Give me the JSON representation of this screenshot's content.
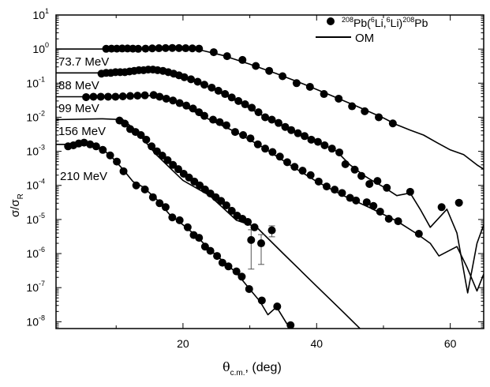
{
  "chart_data": {
    "type": "scatter",
    "xlabel": "θ",
    "xlabel_sub": "c.m.",
    "xlabel_unit": ", (deg)",
    "ylabel": "σ/σ",
    "ylabel_sub": "R",
    "xlim": [
      1,
      65
    ],
    "ylim": [
      6.3e-09,
      10
    ],
    "yscale": "log",
    "x_ticks": [
      20,
      40,
      60
    ],
    "x_tick_labels": [
      "20",
      "40",
      "60"
    ],
    "y_tick_exponents": [
      "1",
      "0",
      "-1",
      "-2",
      "-3",
      "-4",
      "-5",
      "-6",
      "-7",
      "-8"
    ],
    "grid": false,
    "legend": {
      "placement": "top-right",
      "data_label_parts": [
        "208",
        "Pb(",
        "6",
        "Li,",
        "6",
        "Li)",
        "208",
        "Pb"
      ],
      "line_label": "OM"
    },
    "series": [
      {
        "energy_label": "73.7 MeV",
        "points": [
          [
            8.5,
            1.02
          ],
          [
            9.3,
            1.03
          ],
          [
            10.1,
            1.03
          ],
          [
            10.9,
            1.04
          ],
          [
            11.7,
            1.04
          ],
          [
            12.5,
            1.03
          ],
          [
            13.3,
            1.02
          ],
          [
            14.4,
            1.03
          ],
          [
            15.4,
            1.05
          ],
          [
            16.4,
            1.06
          ],
          [
            17.4,
            1.07
          ],
          [
            18.4,
            1.08
          ],
          [
            19.4,
            1.07
          ],
          [
            20.4,
            1.06
          ],
          [
            21.4,
            1.05
          ],
          [
            22.4,
            1.03
          ],
          [
            24.6,
            0.81
          ],
          [
            26.6,
            0.62
          ],
          [
            28.9,
            0.48
          ],
          [
            30.9,
            0.32
          ],
          [
            32.9,
            0.23
          ],
          [
            34.9,
            0.16
          ],
          [
            37,
            0.1
          ],
          [
            39,
            0.078
          ],
          [
            41.1,
            0.048
          ],
          [
            43.3,
            0.035
          ],
          [
            45.3,
            0.021
          ],
          [
            47.2,
            0.015
          ],
          [
            49.3,
            0.01
          ],
          [
            51.4,
            0.0066
          ]
        ],
        "om": [
          [
            1,
            1.0
          ],
          [
            8,
            1.0
          ],
          [
            14,
            1.02
          ],
          [
            20,
            1.05
          ],
          [
            23,
            0.9
          ],
          [
            26,
            0.65
          ],
          [
            30,
            0.36
          ],
          [
            34,
            0.19
          ],
          [
            38,
            0.095
          ],
          [
            42,
            0.045
          ],
          [
            46,
            0.021
          ],
          [
            50,
            0.0095
          ],
          [
            52,
            0.006
          ],
          [
            54,
            0.0042
          ],
          [
            56,
            0.003
          ],
          [
            58,
            0.0018
          ],
          [
            60,
            0.0011
          ],
          [
            62,
            0.0008
          ],
          [
            64,
            0.0004
          ],
          [
            65,
            0.0003
          ]
        ]
      },
      {
        "energy_label": "88 MeV",
        "points": [
          [
            7.8,
            0.19
          ],
          [
            8.5,
            0.2
          ],
          [
            9.2,
            0.2
          ],
          [
            9.9,
            0.21
          ],
          [
            10.6,
            0.21
          ],
          [
            11.3,
            0.21
          ],
          [
            12,
            0.22
          ],
          [
            12.7,
            0.23
          ],
          [
            13.4,
            0.24
          ],
          [
            14.1,
            0.24
          ],
          [
            14.8,
            0.25
          ],
          [
            15.5,
            0.25
          ],
          [
            16.2,
            0.24
          ],
          [
            17,
            0.23
          ],
          [
            17.8,
            0.21
          ],
          [
            18.6,
            0.19
          ],
          [
            19.4,
            0.17
          ],
          [
            20.2,
            0.15
          ],
          [
            21.2,
            0.13
          ],
          [
            22.2,
            0.11
          ],
          [
            23.2,
            0.09
          ],
          [
            24.3,
            0.074
          ],
          [
            25.3,
            0.06
          ],
          [
            26.3,
            0.048
          ],
          [
            27.3,
            0.038
          ],
          [
            28.3,
            0.03
          ],
          [
            29.3,
            0.024
          ],
          [
            30.3,
            0.019
          ],
          [
            31.3,
            0.014
          ],
          [
            32.3,
            0.01
          ],
          [
            33.3,
            0.0085
          ],
          [
            34.3,
            0.0068
          ],
          [
            35.3,
            0.0052
          ],
          [
            36.2,
            0.0042
          ],
          [
            37.2,
            0.0034
          ],
          [
            38.2,
            0.0028
          ],
          [
            39.2,
            0.0022
          ],
          [
            40.2,
            0.0019
          ],
          [
            41.2,
            0.0015
          ],
          [
            42.3,
            0.0012
          ],
          [
            43.4,
            0.00093
          ],
          [
            44.3,
            0.00042
          ],
          [
            45.7,
            0.00029
          ],
          [
            46.7,
            0.00019
          ],
          [
            47.9,
            0.00011
          ],
          [
            49.1,
            0.000135
          ],
          [
            50.5,
            8.5e-05
          ],
          [
            54,
            6.5e-05
          ],
          [
            58.7,
            2.3e-05
          ],
          [
            61.3,
            3.1e-05
          ]
        ],
        "om": [
          [
            1,
            0.2
          ],
          [
            7,
            0.2
          ],
          [
            10,
            0.21
          ],
          [
            13,
            0.23
          ],
          [
            16,
            0.24
          ],
          [
            20,
            0.15
          ],
          [
            24,
            0.075
          ],
          [
            28,
            0.03
          ],
          [
            32,
            0.011
          ],
          [
            36,
            0.0042
          ],
          [
            40,
            0.002
          ],
          [
            43,
            0.001
          ],
          [
            45,
            0.0004
          ],
          [
            47,
            0.0002
          ],
          [
            48,
            0.00015
          ],
          [
            50,
            9e-05
          ],
          [
            52,
            5e-05
          ],
          [
            54,
            6e-05
          ],
          [
            55.5,
            2e-05
          ],
          [
            57,
            5.9e-06
          ],
          [
            59.5,
            2e-05
          ],
          [
            61,
            4e-06
          ],
          [
            62.6,
            7e-08
          ],
          [
            64,
            2e-06
          ],
          [
            65,
            7e-06
          ]
        ]
      },
      {
        "energy_label": "99 MeV",
        "points": [
          [
            5.5,
            0.039
          ],
          [
            6.6,
            0.04
          ],
          [
            7.7,
            0.04
          ],
          [
            8.8,
            0.04
          ],
          [
            9.9,
            0.04
          ],
          [
            11,
            0.041
          ],
          [
            12.1,
            0.042
          ],
          [
            13.2,
            0.043
          ],
          [
            14.3,
            0.044
          ],
          [
            15.6,
            0.045
          ],
          [
            16.5,
            0.04
          ],
          [
            17.5,
            0.035
          ],
          [
            18.5,
            0.031
          ],
          [
            19.5,
            0.026
          ],
          [
            20.5,
            0.022
          ],
          [
            21.5,
            0.018
          ],
          [
            22.4,
            0.014
          ],
          [
            23.2,
            0.011
          ],
          [
            24.5,
            0.0085
          ],
          [
            25.5,
            0.0072
          ],
          [
            26.5,
            0.0058
          ],
          [
            27.8,
            0.0037
          ],
          [
            29,
            0.003
          ],
          [
            30.1,
            0.0024
          ],
          [
            31.2,
            0.0016
          ],
          [
            32.3,
            0.0012
          ],
          [
            33.4,
            0.00095
          ],
          [
            34.5,
            0.0007
          ],
          [
            35.6,
            0.00048
          ],
          [
            36.7,
            0.00035
          ],
          [
            37.9,
            0.00027
          ],
          [
            39.1,
            0.0002
          ],
          [
            40.3,
            0.00013
          ],
          [
            41.5,
            9.3e-05
          ],
          [
            42.7,
            7.5e-05
          ],
          [
            43.8,
            6e-05
          ],
          [
            45,
            4.3e-05
          ],
          [
            45.9,
            3.6e-05
          ],
          [
            47.5,
            3.2e-05
          ],
          [
            48.5,
            2.5e-05
          ],
          [
            49.5,
            1.7e-05
          ],
          [
            50.8,
            1.05e-05
          ],
          [
            52.2,
            8.9e-06
          ],
          [
            55.3,
            3.8e-06
          ]
        ],
        "om": [
          [
            1,
            0.04
          ],
          [
            6,
            0.04
          ],
          [
            12,
            0.042
          ],
          [
            16,
            0.043
          ],
          [
            20,
            0.022
          ],
          [
            24,
            0.0085
          ],
          [
            28,
            0.0036
          ],
          [
            32,
            0.0013
          ],
          [
            36,
            0.0004
          ],
          [
            40,
            0.00013
          ],
          [
            44,
            5e-05
          ],
          [
            48,
            2.2e-05
          ],
          [
            52,
            9e-06
          ],
          [
            55,
            3.8e-06
          ],
          [
            57,
            2e-06
          ],
          [
            58.3,
            8.5e-07
          ],
          [
            61,
            1.6e-06
          ],
          [
            62.5,
            4e-07
          ],
          [
            64,
            8e-08
          ],
          [
            65,
            2.5e-07
          ]
        ]
      },
      {
        "energy_label": "156 MeV",
        "points": [
          [
            10.5,
            0.008
          ],
          [
            11.3,
            0.0065
          ],
          [
            12.1,
            0.0045
          ],
          [
            12.9,
            0.0037
          ],
          [
            13.7,
            0.003
          ],
          [
            14.5,
            0.0022
          ],
          [
            15.3,
            0.0014
          ],
          [
            16.1,
            0.001
          ],
          [
            16.9,
            0.00075
          ],
          [
            17.7,
            0.00055
          ],
          [
            18.5,
            0.0004
          ],
          [
            19.3,
            0.0003
          ],
          [
            20.1,
            0.00022
          ],
          [
            20.9,
            0.00017
          ],
          [
            21.7,
            0.00013
          ],
          [
            22.5,
            0.0001
          ],
          [
            23.3,
            7.6e-05
          ],
          [
            24.1,
            5.8e-05
          ],
          [
            24.9,
            4.5e-05
          ],
          [
            25.7,
            3.5e-05
          ],
          [
            26.5,
            2.6e-05
          ],
          [
            27.3,
            1.8e-05
          ],
          [
            28.1,
            1.3e-05
          ],
          [
            28.9,
            1.05e-05
          ],
          [
            29.7,
            8.5e-06
          ],
          [
            30.7,
            5.9e-06
          ]
        ],
        "error_points": [
          {
            "x": 30.2,
            "y": 2.5e-06,
            "low": 3.5e-07,
            "high": 5e-06
          },
          {
            "x": 31.7,
            "y": 2e-06,
            "low": 4.8e-07,
            "high": 3.6e-06
          },
          {
            "x": 33.3,
            "y": 4.8e-06,
            "low": 3.1e-06,
            "high": 6.5e-06
          }
        ],
        "om": [
          [
            1,
            0.0085
          ],
          [
            8,
            0.009
          ],
          [
            11,
            0.0085
          ],
          [
            13,
            0.004
          ],
          [
            16,
            0.0008
          ],
          [
            20,
            0.00014
          ],
          [
            24,
            5e-05
          ],
          [
            28,
            9.5e-06
          ],
          [
            31,
            6e-06
          ],
          [
            35,
            1e-06
          ],
          [
            40,
            1.1e-07
          ],
          [
            44,
            1.9e-08
          ],
          [
            47,
            5e-09
          ]
        ]
      },
      {
        "energy_label": "210 MeV",
        "points": [
          [
            2.8,
            0.0014
          ],
          [
            3.6,
            0.0015
          ],
          [
            4.4,
            0.0017
          ],
          [
            5.2,
            0.0018
          ],
          [
            6.1,
            0.0016
          ],
          [
            7,
            0.0014
          ],
          [
            8,
            0.0011
          ],
          [
            9.1,
            0.00076
          ],
          [
            10.1,
            0.0005
          ],
          [
            11.1,
            0.00026
          ],
          [
            13,
            0.0001
          ],
          [
            14.3,
            7.6e-05
          ],
          [
            15.5,
            4.5e-05
          ],
          [
            16.5,
            3e-05
          ],
          [
            17.4,
            2.3e-05
          ],
          [
            18.4,
            1.15e-05
          ],
          [
            19.5,
            9.5e-06
          ],
          [
            20.7,
            5.9e-06
          ],
          [
            21.6,
            3.5e-06
          ],
          [
            22.4,
            2.9e-06
          ],
          [
            23.3,
            1.6e-06
          ],
          [
            24.1,
            1.2e-06
          ],
          [
            25.1,
            8.5e-07
          ],
          [
            25.9,
            5.4e-07
          ],
          [
            26.8,
            4.2e-07
          ],
          [
            28,
            3e-07
          ],
          [
            28.8,
            2.1e-07
          ],
          [
            29.9,
            9.1e-08
          ],
          [
            31.8,
            4.2e-08
          ],
          [
            34.1,
            2.8e-08
          ],
          [
            36.1,
            7.9e-09
          ]
        ],
        "om": [
          [
            1,
            0.0016
          ],
          [
            3,
            0.0016
          ],
          [
            5,
            0.0018
          ],
          [
            7,
            0.0015
          ],
          [
            9,
            0.0008
          ],
          [
            11,
            0.0003
          ],
          [
            12.5,
            0.00013
          ],
          [
            14,
            9e-05
          ],
          [
            16,
            4e-05
          ],
          [
            18,
            1.4e-05
          ],
          [
            20,
            7e-06
          ],
          [
            22,
            3.3e-06
          ],
          [
            24,
            1.3e-06
          ],
          [
            26,
            6e-07
          ],
          [
            28,
            2.7e-07
          ],
          [
            30,
            9e-08
          ],
          [
            31.5,
            4e-08
          ],
          [
            32.7,
            1.6e-08
          ],
          [
            34,
            2.7e-08
          ],
          [
            35.5,
            9e-09
          ],
          [
            37,
            4.5e-09
          ]
        ]
      }
    ]
  }
}
